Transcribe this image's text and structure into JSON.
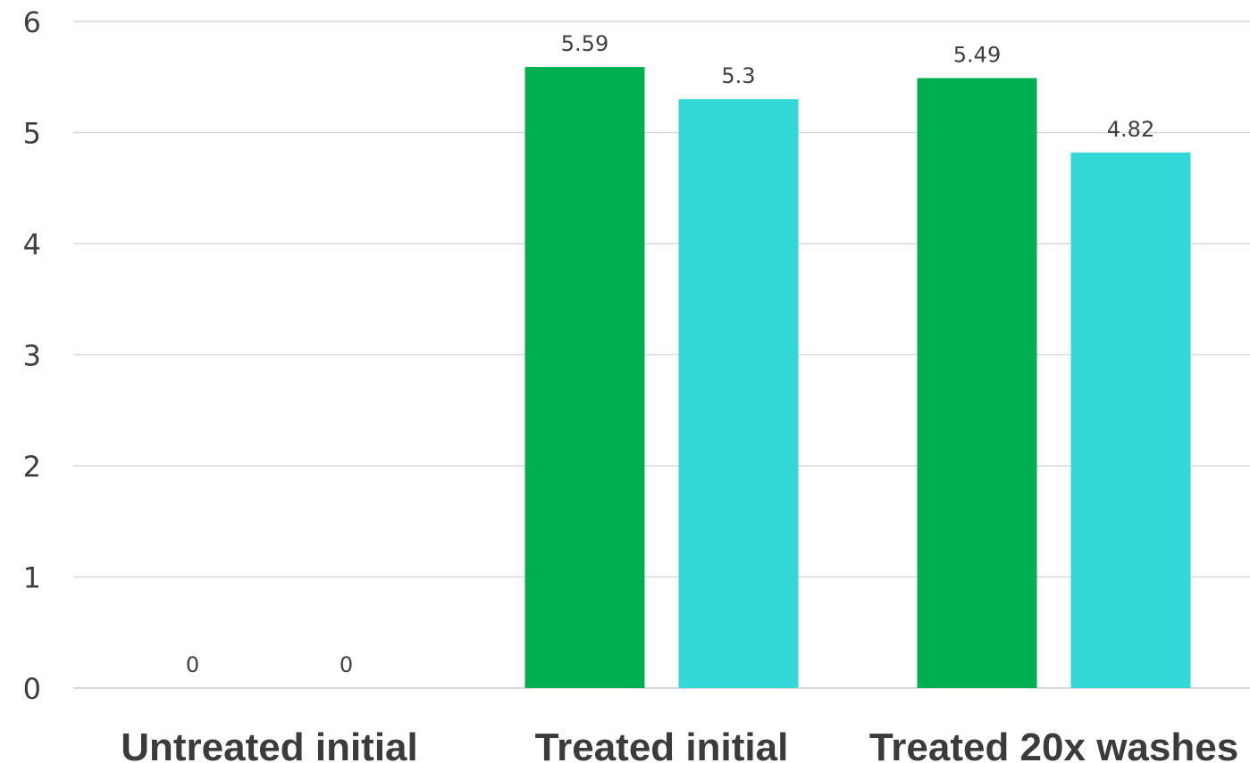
{
  "chart_data": {
    "type": "bar",
    "categories": [
      "Untreated initial",
      "Treated initial",
      "Treated 20x washes"
    ],
    "series": [
      {
        "values": [
          0,
          5.59,
          5.49
        ],
        "color": "#00b050"
      },
      {
        "values": [
          0,
          5.3,
          4.82
        ],
        "color": "#33d9d9"
      }
    ],
    "ylim": [
      0,
      6
    ],
    "yticks": [
      "0",
      "1",
      "2",
      "3",
      "4",
      "5",
      "6"
    ],
    "data_labels": [
      [
        "0",
        "5.59",
        "5.49"
      ],
      [
        "0",
        "5.3",
        "4.82"
      ]
    ],
    "grid": true,
    "legend": "none",
    "title": "",
    "xlabel": "",
    "ylabel": ""
  }
}
